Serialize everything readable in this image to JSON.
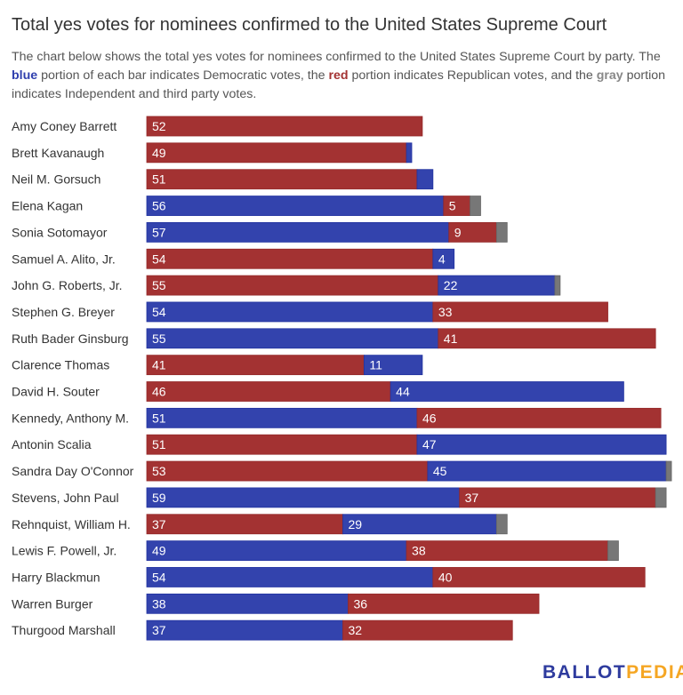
{
  "title": "Total yes votes for nominees confirmed to the United States Supreme Court",
  "subtitle": {
    "part1": "The chart below shows the total yes votes for nominees confirmed to the United States Supreme Court by party. The ",
    "blue": "blue",
    "part2": " portion of each bar indicates Democratic votes, the ",
    "red": "red",
    "part3": " portion indicates Republican votes, and the ",
    "gray": "gray",
    "part4": " portion indicates Independent and third party votes."
  },
  "logo": {
    "part1": "BALLOT",
    "part2": "PEDIA"
  },
  "colors": {
    "D": "#3343ad",
    "R": "#a33232",
    "I": "#777777"
  },
  "chart_data": {
    "type": "bar",
    "orientation": "horizontal",
    "stacked": true,
    "title": "Total yes votes for nominees confirmed to the United States Supreme Court",
    "xlim": [
      0,
      100
    ],
    "grid": false,
    "categories": [
      "Amy Coney Barrett",
      "Brett Kavanaugh",
      "Neil M. Gorsuch",
      "Elena Kagan",
      "Sonia Sotomayor",
      "Samuel A. Alito, Jr.",
      "John G. Roberts, Jr.",
      "Stephen G. Breyer",
      "Ruth Bader Ginsburg",
      "Clarence Thomas",
      "David H. Souter",
      "Kennedy, Anthony M.",
      "Antonin Scalia",
      "Sandra Day O'Connor",
      "Stevens, John Paul",
      "Rehnquist, William H.",
      "Lewis F. Powell, Jr.",
      "Harry Blackmun",
      "Warren Burger",
      "Thurgood Marshall"
    ],
    "segments": [
      [
        [
          "R",
          52
        ]
      ],
      [
        [
          "R",
          49
        ],
        [
          "D",
          1
        ]
      ],
      [
        [
          "R",
          51
        ],
        [
          "D",
          3
        ]
      ],
      [
        [
          "D",
          56
        ],
        [
          "R",
          5
        ],
        [
          "I",
          2
        ]
      ],
      [
        [
          "D",
          57
        ],
        [
          "R",
          9
        ],
        [
          "I",
          2
        ]
      ],
      [
        [
          "R",
          54
        ],
        [
          "D",
          4
        ]
      ],
      [
        [
          "R",
          55
        ],
        [
          "D",
          22
        ],
        [
          "I",
          1
        ]
      ],
      [
        [
          "D",
          54
        ],
        [
          "R",
          33
        ]
      ],
      [
        [
          "D",
          55
        ],
        [
          "R",
          41
        ]
      ],
      [
        [
          "R",
          41
        ],
        [
          "D",
          11
        ]
      ],
      [
        [
          "R",
          46
        ],
        [
          "D",
          44
        ]
      ],
      [
        [
          "D",
          51
        ],
        [
          "R",
          46
        ]
      ],
      [
        [
          "R",
          51
        ],
        [
          "D",
          47
        ]
      ],
      [
        [
          "R",
          53
        ],
        [
          "D",
          45
        ],
        [
          "I",
          1
        ]
      ],
      [
        [
          "D",
          59
        ],
        [
          "R",
          37
        ],
        [
          "I",
          2
        ]
      ],
      [
        [
          "R",
          37
        ],
        [
          "D",
          29
        ],
        [
          "I",
          2
        ]
      ],
      [
        [
          "D",
          49
        ],
        [
          "R",
          38
        ],
        [
          "I",
          2
        ]
      ],
      [
        [
          "D",
          54
        ],
        [
          "R",
          40
        ]
      ],
      [
        [
          "D",
          38
        ],
        [
          "R",
          36
        ]
      ],
      [
        [
          "D",
          37
        ],
        [
          "R",
          32
        ]
      ]
    ]
  }
}
